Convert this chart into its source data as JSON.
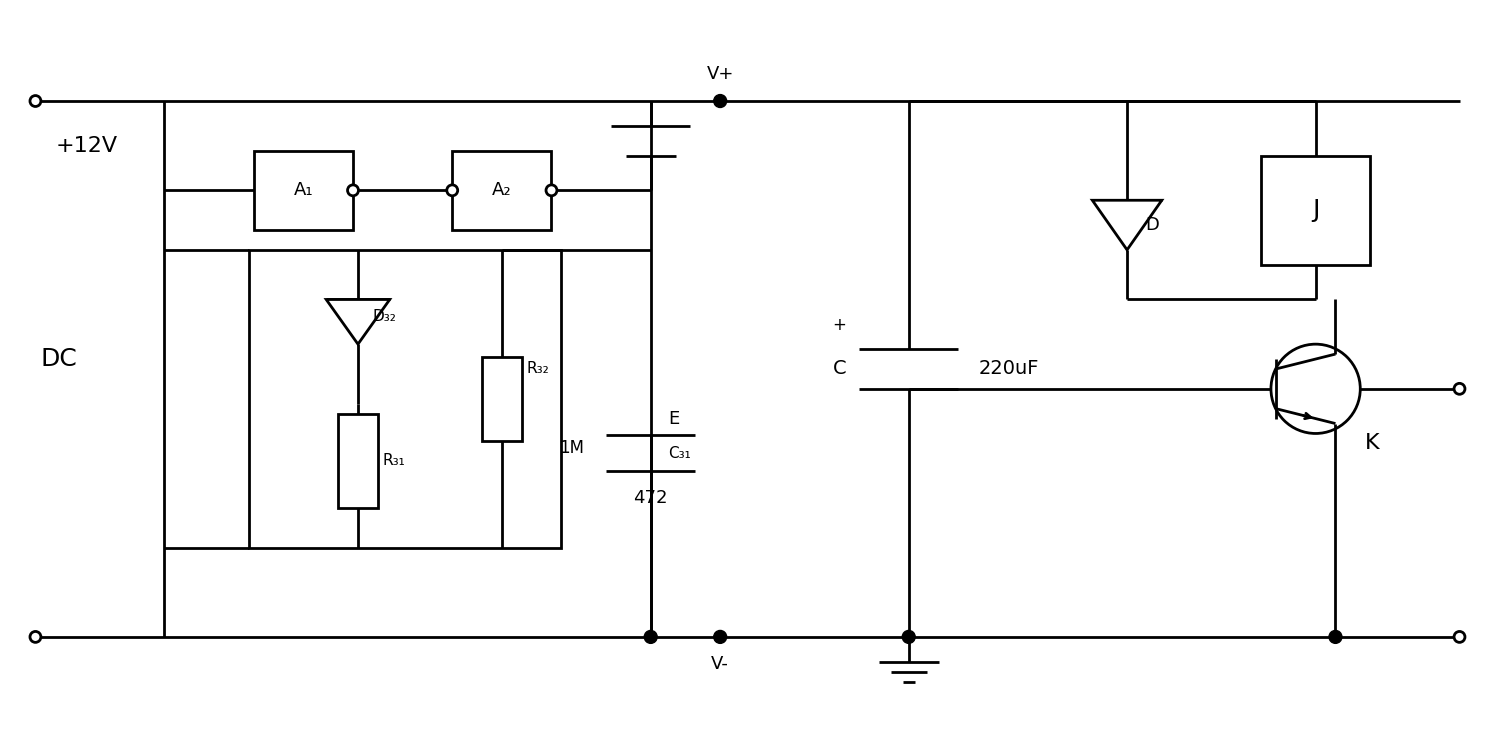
{
  "bg_color": "#ffffff",
  "line_color": "#000000",
  "line_width": 2.0,
  "fig_width": 14.88,
  "fig_height": 7.29,
  "labels": {
    "plus12v": "+12V",
    "dc": "DC",
    "vplus": "V+",
    "vminus": "V-",
    "a1": "A₁",
    "a2": "A₂",
    "d32": "D₃₂",
    "r32": "R₃₂",
    "r31": "R₃₁",
    "c31": "C₃₁",
    "val_1m": "1M",
    "val_472": "472",
    "e_label": "E",
    "c_label": "C",
    "d_label": "D",
    "j_label": "J",
    "k_label": "K",
    "val_220uf": "220uF"
  }
}
